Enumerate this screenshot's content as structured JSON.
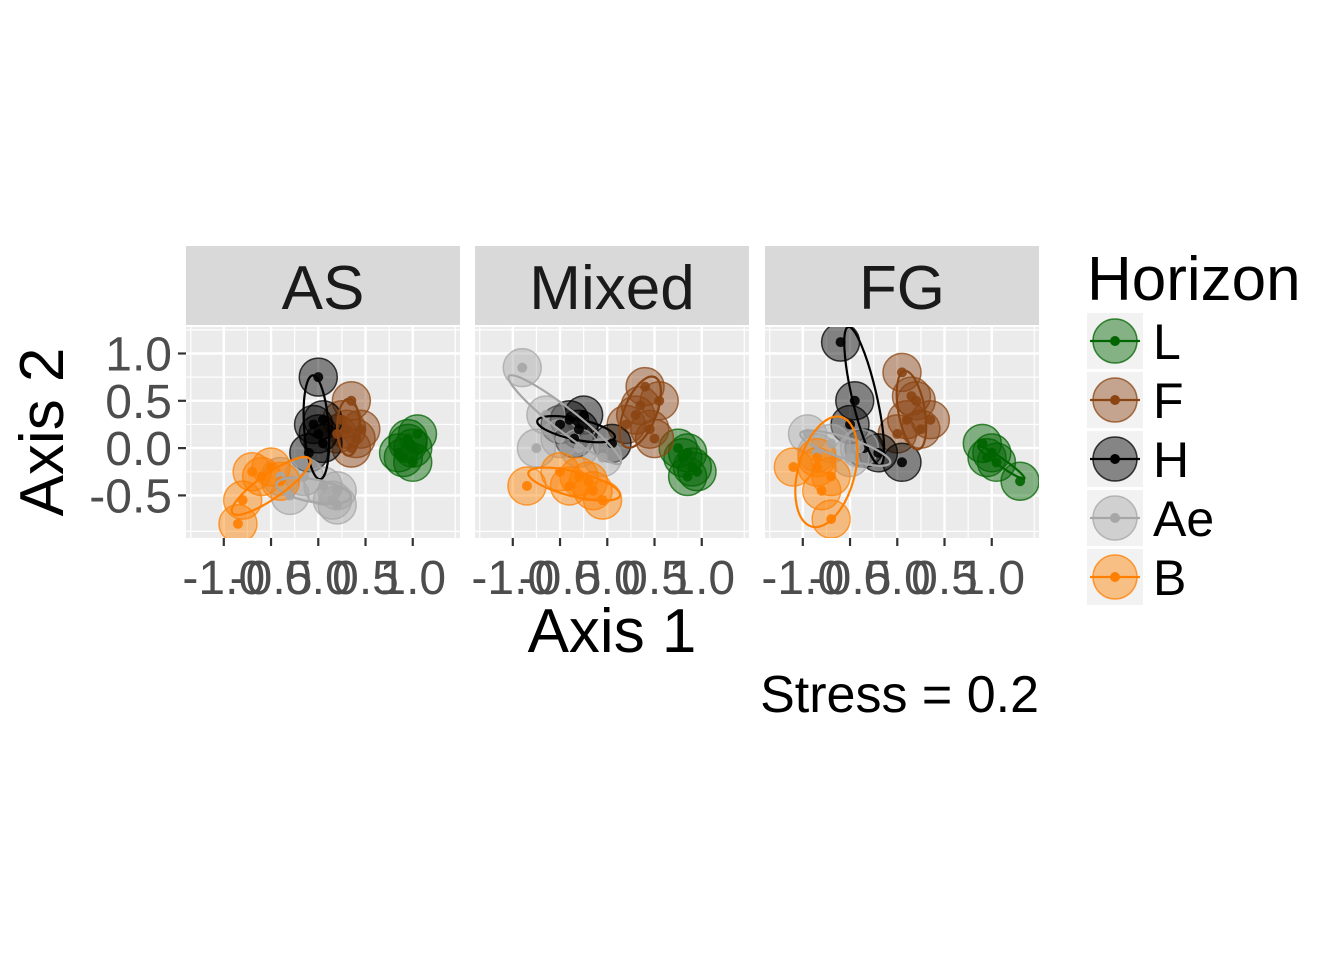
{
  "chart_data": {
    "type": "scatter",
    "facets": [
      "AS",
      "Mixed",
      "FG"
    ],
    "xlabel": "Axis 1",
    "ylabel": "Axis 2",
    "x_ticks": [
      "-1.0",
      "-0.5",
      "0.0",
      "0.5",
      "1.0"
    ],
    "y_ticks": [
      "1.0",
      "0.5",
      "0.0",
      "-0.5"
    ],
    "xlim": [
      -1.4,
      1.5
    ],
    "ylim": [
      -0.95,
      1.28
    ],
    "grid": true,
    "legend_title": "Horizon",
    "legend_position": "right",
    "annotation": "Stress = 0.2",
    "colors": {
      "L": "#006400",
      "F": "#8b4513",
      "H": "#000000",
      "Ae": "#a6a6a6",
      "B": "#ff8000"
    },
    "series": [
      {
        "name": "L",
        "points": {
          "AS": [
            [
              1.05,
              0.15
            ],
            [
              0.95,
              0.05
            ],
            [
              0.9,
              -0.1
            ],
            [
              1.0,
              -0.15
            ],
            [
              0.95,
              0.1
            ],
            [
              0.85,
              -0.05
            ],
            [
              1.0,
              0.0
            ]
          ],
          "Mixed": [
            [
              0.85,
              -0.05
            ],
            [
              0.9,
              -0.2
            ],
            [
              0.75,
              0.0
            ],
            [
              0.85,
              -0.3
            ],
            [
              0.95,
              -0.25
            ],
            [
              0.8,
              -0.1
            ]
          ],
          "FG": [
            [
              0.9,
              0.05
            ],
            [
              1.0,
              -0.05
            ],
            [
              1.05,
              -0.15
            ],
            [
              1.3,
              -0.35
            ],
            [
              0.95,
              -0.1
            ]
          ]
        }
      },
      {
        "name": "F",
        "points": {
          "AS": [
            [
              0.35,
              0.5
            ],
            [
              0.25,
              0.3
            ],
            [
              0.3,
              0.2
            ],
            [
              0.4,
              0.1
            ],
            [
              0.35,
              0.0
            ],
            [
              0.2,
              0.15
            ],
            [
              0.45,
              0.2
            ]
          ],
          "Mixed": [
            [
              0.4,
              0.65
            ],
            [
              0.55,
              0.5
            ],
            [
              0.3,
              0.35
            ],
            [
              0.45,
              0.2
            ],
            [
              0.2,
              0.25
            ],
            [
              0.5,
              0.1
            ],
            [
              0.35,
              0.45
            ]
          ],
          "FG": [
            [
              0.05,
              0.8
            ],
            [
              0.15,
              0.55
            ],
            [
              0.1,
              0.3
            ],
            [
              0.25,
              0.2
            ],
            [
              0.35,
              0.3
            ],
            [
              0.0,
              0.15
            ],
            [
              0.2,
              0.5
            ]
          ]
        }
      },
      {
        "name": "H",
        "points": {
          "AS": [
            [
              0.0,
              0.75
            ],
            [
              -0.05,
              0.25
            ],
            [
              0.0,
              0.15
            ],
            [
              0.05,
              0.05
            ],
            [
              -0.1,
              -0.05
            ],
            [
              0.05,
              0.3
            ]
          ],
          "Mixed": [
            [
              -0.5,
              0.25
            ],
            [
              -0.3,
              0.2
            ],
            [
              -0.4,
              0.3
            ],
            [
              -0.25,
              0.35
            ],
            [
              0.05,
              0.05
            ],
            [
              -0.35,
              0.1
            ]
          ],
          "FG": [
            [
              -0.6,
              1.12
            ],
            [
              -0.45,
              0.5
            ],
            [
              -0.5,
              0.25
            ],
            [
              -0.35,
              0.0
            ],
            [
              -0.2,
              -0.05
            ],
            [
              0.05,
              -0.15
            ]
          ]
        }
      },
      {
        "name": "Ae",
        "points": {
          "AS": [
            [
              0.2,
              -0.45
            ],
            [
              0.15,
              -0.55
            ],
            [
              0.2,
              -0.6
            ],
            [
              0.05,
              -0.4
            ],
            [
              -0.15,
              -0.3
            ],
            [
              -0.3,
              -0.5
            ],
            [
              -0.4,
              -0.3
            ]
          ],
          "Mixed": [
            [
              -0.9,
              0.85
            ],
            [
              -0.65,
              0.35
            ],
            [
              -0.5,
              0.1
            ],
            [
              -0.3,
              0.0
            ],
            [
              -0.05,
              -0.1
            ],
            [
              -0.75,
              0.0
            ]
          ],
          "FG": [
            [
              -0.95,
              0.15
            ],
            [
              -0.7,
              0.05
            ],
            [
              -0.5,
              -0.1
            ],
            [
              -0.4,
              0.0
            ],
            [
              -0.85,
              -0.05
            ]
          ]
        }
      },
      {
        "name": "B",
        "points": {
          "AS": [
            [
              -0.5,
              -0.2
            ],
            [
              -0.7,
              -0.25
            ],
            [
              -0.8,
              -0.55
            ],
            [
              -0.85,
              -0.8
            ],
            [
              -0.4,
              -0.35
            ],
            [
              -0.6,
              -0.3
            ]
          ],
          "Mixed": [
            [
              -0.85,
              -0.4
            ],
            [
              -0.5,
              -0.25
            ],
            [
              -0.3,
              -0.3
            ],
            [
              -0.2,
              -0.35
            ],
            [
              -0.15,
              -0.45
            ],
            [
              -0.05,
              -0.55
            ],
            [
              -0.4,
              -0.4
            ]
          ],
          "FG": [
            [
              -1.1,
              -0.2
            ],
            [
              -0.85,
              -0.2
            ],
            [
              -0.7,
              -0.3
            ],
            [
              -0.8,
              -0.45
            ],
            [
              -0.7,
              -0.75
            ],
            [
              -0.85,
              -0.1
            ]
          ]
        }
      }
    ],
    "ellipses": {
      "AS": [
        {
          "series": "F",
          "cx": 0.32,
          "cy": 0.22,
          "rx": 0.12,
          "ry": 0.3,
          "angle": 0
        },
        {
          "series": "H",
          "cx": -0.02,
          "cy": 0.22,
          "rx": 0.13,
          "ry": 0.55,
          "angle": 4
        },
        {
          "series": "Ae",
          "cx": -0.05,
          "cy": -0.45,
          "rx": 0.4,
          "ry": 0.12,
          "angle": -10
        },
        {
          "series": "B",
          "cx": -0.5,
          "cy": -0.4,
          "rx": 0.5,
          "ry": 0.13,
          "angle": 35
        }
      ],
      "Mixed": [
        {
          "series": "F",
          "cx": 0.35,
          "cy": 0.38,
          "rx": 0.17,
          "ry": 0.4,
          "angle": -22
        },
        {
          "series": "H",
          "cx": -0.33,
          "cy": 0.2,
          "rx": 0.42,
          "ry": 0.11,
          "angle": -12
        },
        {
          "series": "Ae",
          "cx": -0.45,
          "cy": 0.3,
          "rx": 0.75,
          "ry": 0.12,
          "angle": -38
        },
        {
          "series": "B",
          "cx": -0.35,
          "cy": -0.38,
          "rx": 0.5,
          "ry": 0.13,
          "angle": -14
        }
      ],
      "FG": [
        {
          "series": "L",
          "cx": 1.1,
          "cy": -0.15,
          "rx": 0.3,
          "ry": 0.04,
          "angle": -35
        },
        {
          "series": "F",
          "cx": 0.15,
          "cy": 0.4,
          "rx": 0.14,
          "ry": 0.42,
          "angle": 10
        },
        {
          "series": "H",
          "cx": -0.35,
          "cy": 0.55,
          "rx": 0.13,
          "ry": 0.75,
          "angle": 13
        },
        {
          "series": "Ae",
          "cx": -0.55,
          "cy": 0.0,
          "rx": 0.5,
          "ry": 0.11,
          "angle": -18
        },
        {
          "series": "B",
          "cx": -0.75,
          "cy": -0.25,
          "rx": 0.3,
          "ry": 0.6,
          "angle": -15
        }
      ]
    }
  }
}
